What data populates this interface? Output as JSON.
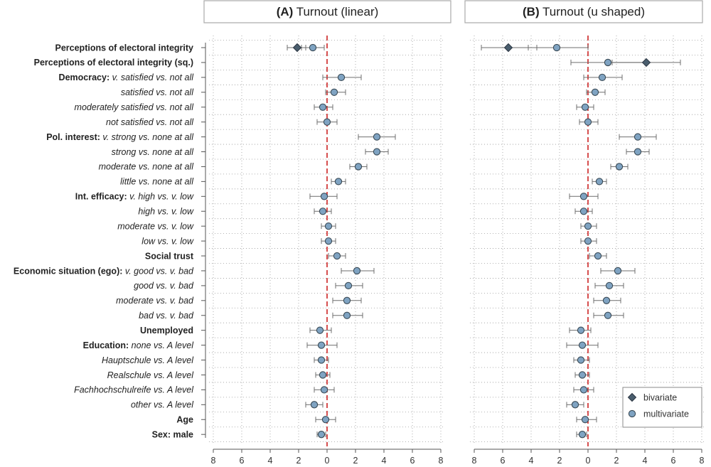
{
  "chart_data": {
    "type": "scatter",
    "style": "coefficient-plot",
    "xlim": [
      -8,
      8
    ],
    "tick_values": [
      -8,
      -6,
      -4,
      -2,
      0,
      2,
      4,
      6,
      8
    ],
    "tick_labels": [
      "8",
      "6",
      "4",
      "2",
      "0",
      "2",
      "4",
      "6",
      "8"
    ],
    "grid": true,
    "reference_line": 0,
    "legend": {
      "placement": "bottom-right of panel B",
      "entries": [
        {
          "label": "bivariate",
          "marker": "diamond",
          "color": "#4a5e6e"
        },
        {
          "label": "multivariate",
          "marker": "circle",
          "color": "#7fa3c2"
        }
      ]
    },
    "rows": [
      {
        "parts": [
          {
            "t": "Perceptions of electoral integrity",
            "s": "b"
          }
        ]
      },
      {
        "parts": [
          {
            "t": "Perceptions of electoral integrity (sq.)",
            "s": "b"
          }
        ]
      },
      {
        "parts": [
          {
            "t": "Democracy: ",
            "s": "b"
          },
          {
            "t": "v. satisfied vs. not all",
            "s": "i"
          }
        ]
      },
      {
        "parts": [
          {
            "t": "satisfied vs. not all",
            "s": "i"
          }
        ]
      },
      {
        "parts": [
          {
            "t": "moderately satisfied vs. not all",
            "s": "i"
          }
        ]
      },
      {
        "parts": [
          {
            "t": "not satisfied vs. not all",
            "s": "i"
          }
        ]
      },
      {
        "parts": [
          {
            "t": "Pol. interest: ",
            "s": "b"
          },
          {
            "t": "v. strong vs. none at all",
            "s": "i"
          }
        ]
      },
      {
        "parts": [
          {
            "t": "strong vs. none at all",
            "s": "i"
          }
        ]
      },
      {
        "parts": [
          {
            "t": "moderate vs. none at all",
            "s": "i"
          }
        ]
      },
      {
        "parts": [
          {
            "t": "little vs. none at all",
            "s": "i"
          }
        ]
      },
      {
        "parts": [
          {
            "t": "Int. efficacy: ",
            "s": "b"
          },
          {
            "t": "v. high vs. v. low",
            "s": "i"
          }
        ]
      },
      {
        "parts": [
          {
            "t": "high vs. v. low",
            "s": "i"
          }
        ]
      },
      {
        "parts": [
          {
            "t": "moderate vs. v. low",
            "s": "i"
          }
        ]
      },
      {
        "parts": [
          {
            "t": "low vs. v. low",
            "s": "i"
          }
        ]
      },
      {
        "parts": [
          {
            "t": "Social trust",
            "s": "b"
          }
        ]
      },
      {
        "parts": [
          {
            "t": "Economic situation (ego): ",
            "s": "b"
          },
          {
            "t": "v. good vs. v. bad",
            "s": "i"
          }
        ]
      },
      {
        "parts": [
          {
            "t": "good vs. v. bad",
            "s": "i"
          }
        ]
      },
      {
        "parts": [
          {
            "t": "moderate vs. v. bad",
            "s": "i"
          }
        ]
      },
      {
        "parts": [
          {
            "t": "bad vs. v. bad",
            "s": "i"
          }
        ]
      },
      {
        "parts": [
          {
            "t": "Unemployed",
            "s": "b"
          }
        ]
      },
      {
        "parts": [
          {
            "t": "Education: ",
            "s": "b"
          },
          {
            "t": "none vs. A  level",
            "s": "i"
          }
        ]
      },
      {
        "parts": [
          {
            "t": "Hauptschule vs. A  level",
            "s": "i"
          }
        ]
      },
      {
        "parts": [
          {
            "t": "Realschule vs. A  level",
            "s": "i"
          }
        ]
      },
      {
        "parts": [
          {
            "t": "Fachhochschulreife vs. A  level",
            "s": "i"
          }
        ]
      },
      {
        "parts": [
          {
            "t": "other vs. A  level",
            "s": "i"
          }
        ]
      },
      {
        "parts": [
          {
            "t": "Age",
            "s": "b"
          }
        ]
      },
      {
        "parts": [
          {
            "t": "Sex: male",
            "s": "b"
          }
        ]
      }
    ],
    "panels": [
      {
        "title_letter": "(A)",
        "title_text": " Turnout (linear)",
        "bivariate": [
          {
            "row": 0,
            "est": -2.1,
            "lo": -2.8,
            "hi": -1.5
          }
        ],
        "multivariate": [
          {
            "row": 0,
            "est": -1.0,
            "lo": -1.8,
            "hi": -0.2
          },
          {
            "row": 2,
            "est": 1.0,
            "lo": -0.3,
            "hi": 2.4
          },
          {
            "row": 3,
            "est": 0.5,
            "lo": -0.1,
            "hi": 1.3
          },
          {
            "row": 4,
            "est": -0.3,
            "lo": -0.9,
            "hi": 0.4
          },
          {
            "row": 5,
            "est": 0.0,
            "lo": -0.7,
            "hi": 0.7
          },
          {
            "row": 6,
            "est": 3.5,
            "lo": 2.2,
            "hi": 4.8
          },
          {
            "row": 7,
            "est": 3.5,
            "lo": 2.7,
            "hi": 4.3
          },
          {
            "row": 8,
            "est": 2.2,
            "lo": 1.6,
            "hi": 2.8
          },
          {
            "row": 9,
            "est": 0.8,
            "lo": 0.3,
            "hi": 1.3
          },
          {
            "row": 10,
            "est": -0.2,
            "lo": -1.2,
            "hi": 0.7
          },
          {
            "row": 11,
            "est": -0.3,
            "lo": -0.9,
            "hi": 0.3
          },
          {
            "row": 12,
            "est": 0.1,
            "lo": -0.4,
            "hi": 0.6
          },
          {
            "row": 13,
            "est": 0.1,
            "lo": -0.4,
            "hi": 0.6
          },
          {
            "row": 14,
            "est": 0.7,
            "lo": 0.1,
            "hi": 1.3
          },
          {
            "row": 15,
            "est": 2.1,
            "lo": 1.0,
            "hi": 3.3
          },
          {
            "row": 16,
            "est": 1.5,
            "lo": 0.6,
            "hi": 2.5
          },
          {
            "row": 17,
            "est": 1.4,
            "lo": 0.4,
            "hi": 2.4
          },
          {
            "row": 18,
            "est": 1.4,
            "lo": 0.4,
            "hi": 2.5
          },
          {
            "row": 19,
            "est": -0.5,
            "lo": -1.2,
            "hi": 0.3
          },
          {
            "row": 20,
            "est": -0.4,
            "lo": -1.4,
            "hi": 0.7
          },
          {
            "row": 21,
            "est": -0.4,
            "lo": -0.9,
            "hi": 0.1
          },
          {
            "row": 22,
            "est": -0.3,
            "lo": -0.8,
            "hi": 0.2
          },
          {
            "row": 23,
            "est": -0.2,
            "lo": -0.9,
            "hi": 0.5
          },
          {
            "row": 24,
            "est": -0.9,
            "lo": -1.5,
            "hi": -0.3
          },
          {
            "row": 25,
            "est": -0.1,
            "lo": -0.8,
            "hi": 0.6
          },
          {
            "row": 26,
            "est": -0.4,
            "lo": -0.7,
            "hi": -0.1
          }
        ]
      },
      {
        "title_letter": "(B)",
        "title_text": " Turnout (u  shaped)",
        "bivariate": [
          {
            "row": 0,
            "est": -5.6,
            "lo": -7.5,
            "hi": -3.6
          },
          {
            "row": 1,
            "est": 4.1,
            "lo": 1.7,
            "hi": 6.5
          }
        ],
        "multivariate": [
          {
            "row": 0,
            "est": -2.2,
            "lo": -4.2,
            "hi": 0.0
          },
          {
            "row": 1,
            "est": 1.4,
            "lo": -1.2,
            "hi": 4.0
          },
          {
            "row": 2,
            "est": 1.0,
            "lo": -0.3,
            "hi": 2.4
          },
          {
            "row": 3,
            "est": 0.5,
            "lo": -0.1,
            "hi": 1.2
          },
          {
            "row": 4,
            "est": -0.2,
            "lo": -0.8,
            "hi": 0.4
          },
          {
            "row": 5,
            "est": 0.0,
            "lo": -0.6,
            "hi": 0.7
          },
          {
            "row": 6,
            "est": 3.5,
            "lo": 2.2,
            "hi": 4.8
          },
          {
            "row": 7,
            "est": 3.5,
            "lo": 2.7,
            "hi": 4.3
          },
          {
            "row": 8,
            "est": 2.2,
            "lo": 1.6,
            "hi": 2.8
          },
          {
            "row": 9,
            "est": 0.8,
            "lo": 0.3,
            "hi": 1.3
          },
          {
            "row": 10,
            "est": -0.3,
            "lo": -1.3,
            "hi": 0.7
          },
          {
            "row": 11,
            "est": -0.3,
            "lo": -0.9,
            "hi": 0.3
          },
          {
            "row": 12,
            "est": 0.0,
            "lo": -0.5,
            "hi": 0.6
          },
          {
            "row": 13,
            "est": 0.0,
            "lo": -0.5,
            "hi": 0.6
          },
          {
            "row": 14,
            "est": 0.7,
            "lo": 0.1,
            "hi": 1.3
          },
          {
            "row": 15,
            "est": 2.1,
            "lo": 0.9,
            "hi": 3.3
          },
          {
            "row": 16,
            "est": 1.5,
            "lo": 0.5,
            "hi": 2.5
          },
          {
            "row": 17,
            "est": 1.3,
            "lo": 0.4,
            "hi": 2.3
          },
          {
            "row": 18,
            "est": 1.4,
            "lo": 0.4,
            "hi": 2.5
          },
          {
            "row": 19,
            "est": -0.5,
            "lo": -1.3,
            "hi": 0.2
          },
          {
            "row": 20,
            "est": -0.4,
            "lo": -1.5,
            "hi": 0.7
          },
          {
            "row": 21,
            "est": -0.5,
            "lo": -1.0,
            "hi": 0.1
          },
          {
            "row": 22,
            "est": -0.4,
            "lo": -0.9,
            "hi": 0.1
          },
          {
            "row": 23,
            "est": -0.3,
            "lo": -1.0,
            "hi": 0.4
          },
          {
            "row": 24,
            "est": -0.9,
            "lo": -1.5,
            "hi": -0.3
          },
          {
            "row": 25,
            "est": -0.2,
            "lo": -0.8,
            "hi": 0.6
          },
          {
            "row": 26,
            "est": -0.4,
            "lo": -0.8,
            "hi": -0.1
          }
        ]
      }
    ]
  }
}
